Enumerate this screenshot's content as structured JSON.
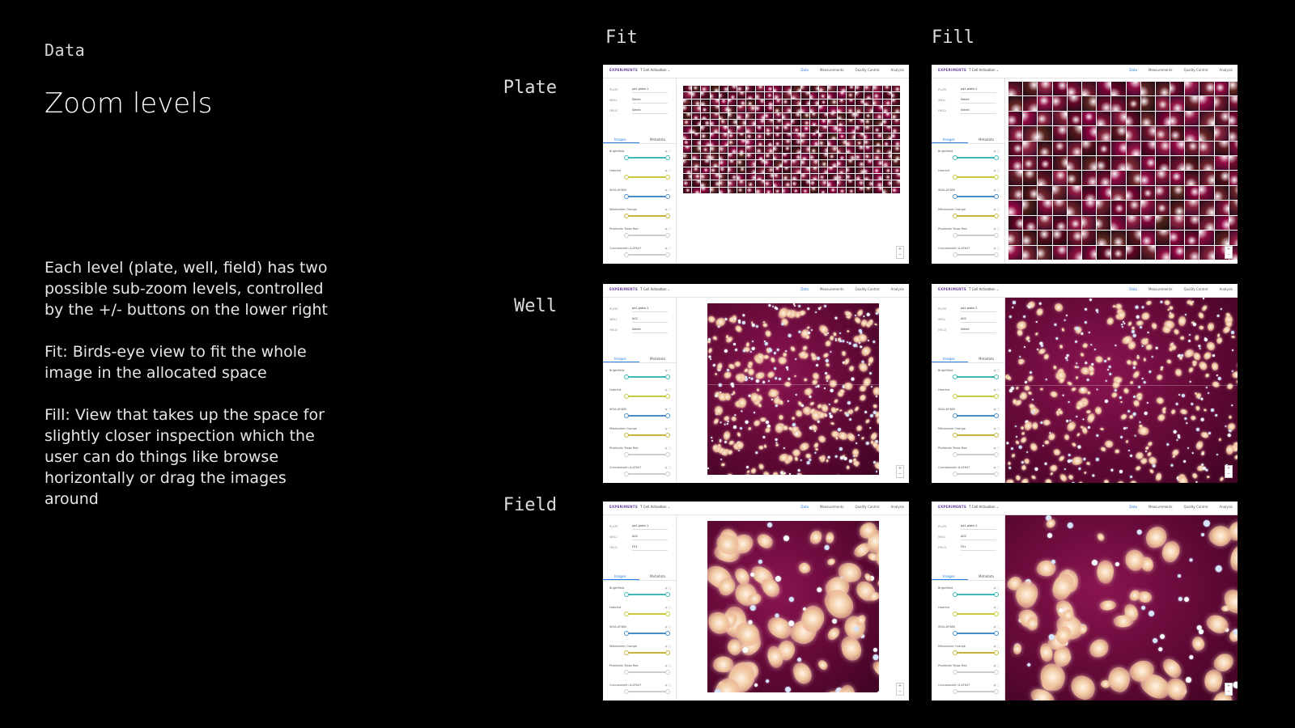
{
  "section_label": "Data",
  "title": "Zoom levels",
  "description": [
    "Each level (plate, well, field) has two possible sub-zoom levels, controlled by the +/- buttons on the lower right",
    "Fit: Birds-eye view to fit the whole image in the allocated space",
    "Fill: View that takes up the space for slightly closer inspection which the user can do things like browse horizontally or drag the images around"
  ],
  "columns": [
    "Fit",
    "Fill"
  ],
  "rows": [
    "Plate",
    "Well",
    "Field"
  ],
  "app": {
    "brand": "EXPERIMENTS",
    "project": "T Cell Activation",
    "nav": [
      "Data",
      "Measurements",
      "Quality Control",
      "Analysis"
    ],
    "tabs": [
      "Images",
      "Metadata"
    ],
    "field_labels": [
      "PLATE",
      "WELL",
      "FIELD"
    ],
    "channels": [
      {
        "name": "Brightfield",
        "color": "#3fb8b8"
      },
      {
        "name": "Hoechst",
        "color": "#c8c83a"
      },
      {
        "name": "WGA-AF488",
        "color": "#4a8ec8"
      },
      {
        "name": "Mitotracker Orange",
        "color": "#c8b43a"
      },
      {
        "name": "Phalloidin Texas Red",
        "color": "#cccccc"
      },
      {
        "name": "Concanavalin A-AF647",
        "color": "#cccccc"
      }
    ],
    "levels": {
      "plate": {
        "plate": "pa1-plate-1",
        "well": "Select",
        "field": "Select"
      },
      "well": {
        "plate": "pa1-plate-1",
        "well": "A02",
        "field": "Select"
      },
      "field": {
        "plate": "pa1-plate-1",
        "well": "A02",
        "field": "F01"
      }
    },
    "zoom_buttons": "+ −"
  },
  "colors": {
    "background": "#000000",
    "cell_bg": "#6b0a3c",
    "accent": "#2a7de1"
  }
}
